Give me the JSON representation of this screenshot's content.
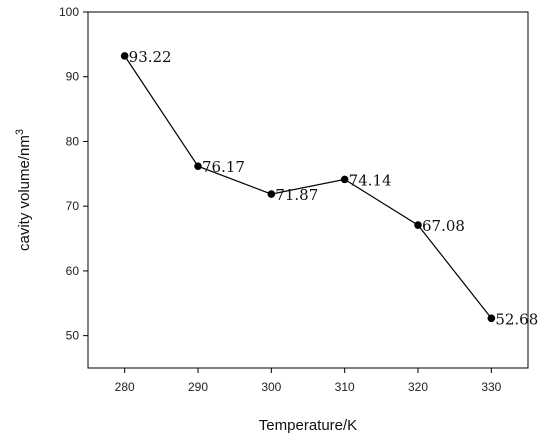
{
  "chart_data": {
    "type": "line",
    "xlabel": "Temperature/K",
    "ylabel": "cavity volume/nm",
    "ylabel_superscript": "3",
    "x": [
      280,
      290,
      300,
      310,
      320,
      330
    ],
    "series": [
      {
        "values": [
          93.22,
          76.17,
          71.87,
          74.14,
          67.08,
          52.68
        ],
        "labels": [
          "93.22",
          "76.17",
          "71.87",
          "74.14",
          "67.08",
          "52.68"
        ],
        "color": "#000000"
      }
    ],
    "xlim": [
      275,
      335
    ],
    "ylim": [
      45,
      100
    ],
    "x_ticks": [
      "280",
      "290",
      "300",
      "310",
      "320",
      "330"
    ],
    "y_ticks": [
      "50",
      "60",
      "70",
      "80",
      "90",
      "100"
    ],
    "grid": false,
    "legend": "none"
  }
}
